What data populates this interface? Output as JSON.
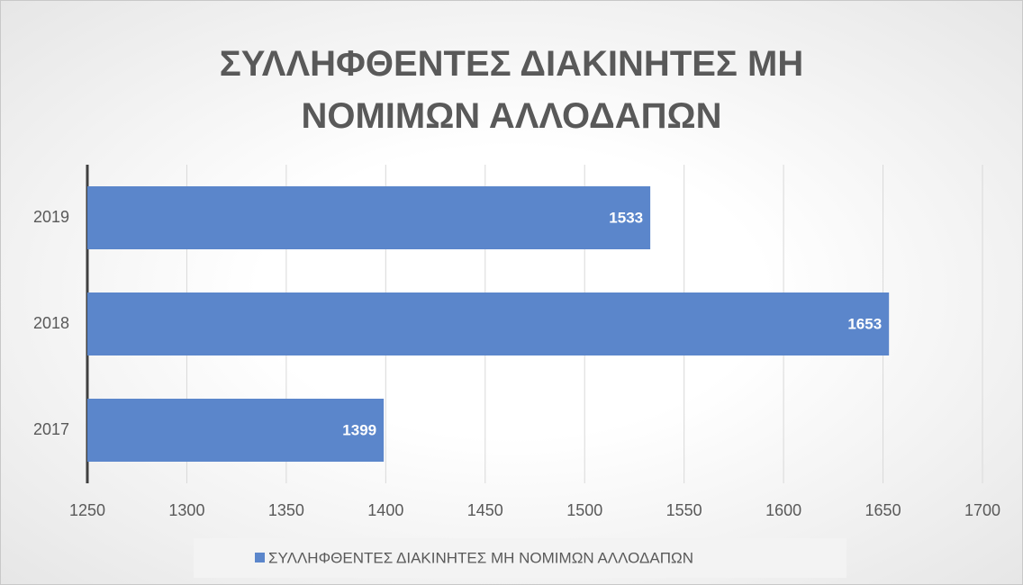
{
  "chart_data": {
    "type": "bar",
    "orientation": "horizontal",
    "title": "ΣΥΛΛΗΦΘΕΝΤΕΣ ΔΙΑΚΙΝΗΤΕΣ ΜΗ ΝΟΜΙΜΩΝ ΑΛΛΟΔΑΠΩΝ",
    "categories": [
      "2017",
      "2018",
      "2019"
    ],
    "series": [
      {
        "name": "ΣΥΛΛΗΦΘΕΝΤΕΣ ΔΙΑΚΙΝΗΤΕΣ ΜΗ ΝΟΜΙΜΩΝ ΑΛΛΟΔΑΠΩΝ",
        "color": "#5b86cb",
        "values": [
          1399,
          1653,
          1533
        ]
      }
    ],
    "xlim": [
      1250,
      1700
    ],
    "xticks": [
      1250,
      1300,
      1350,
      1400,
      1450,
      1500,
      1550,
      1600,
      1650,
      1700
    ],
    "grid": true,
    "legend": "bottom"
  }
}
